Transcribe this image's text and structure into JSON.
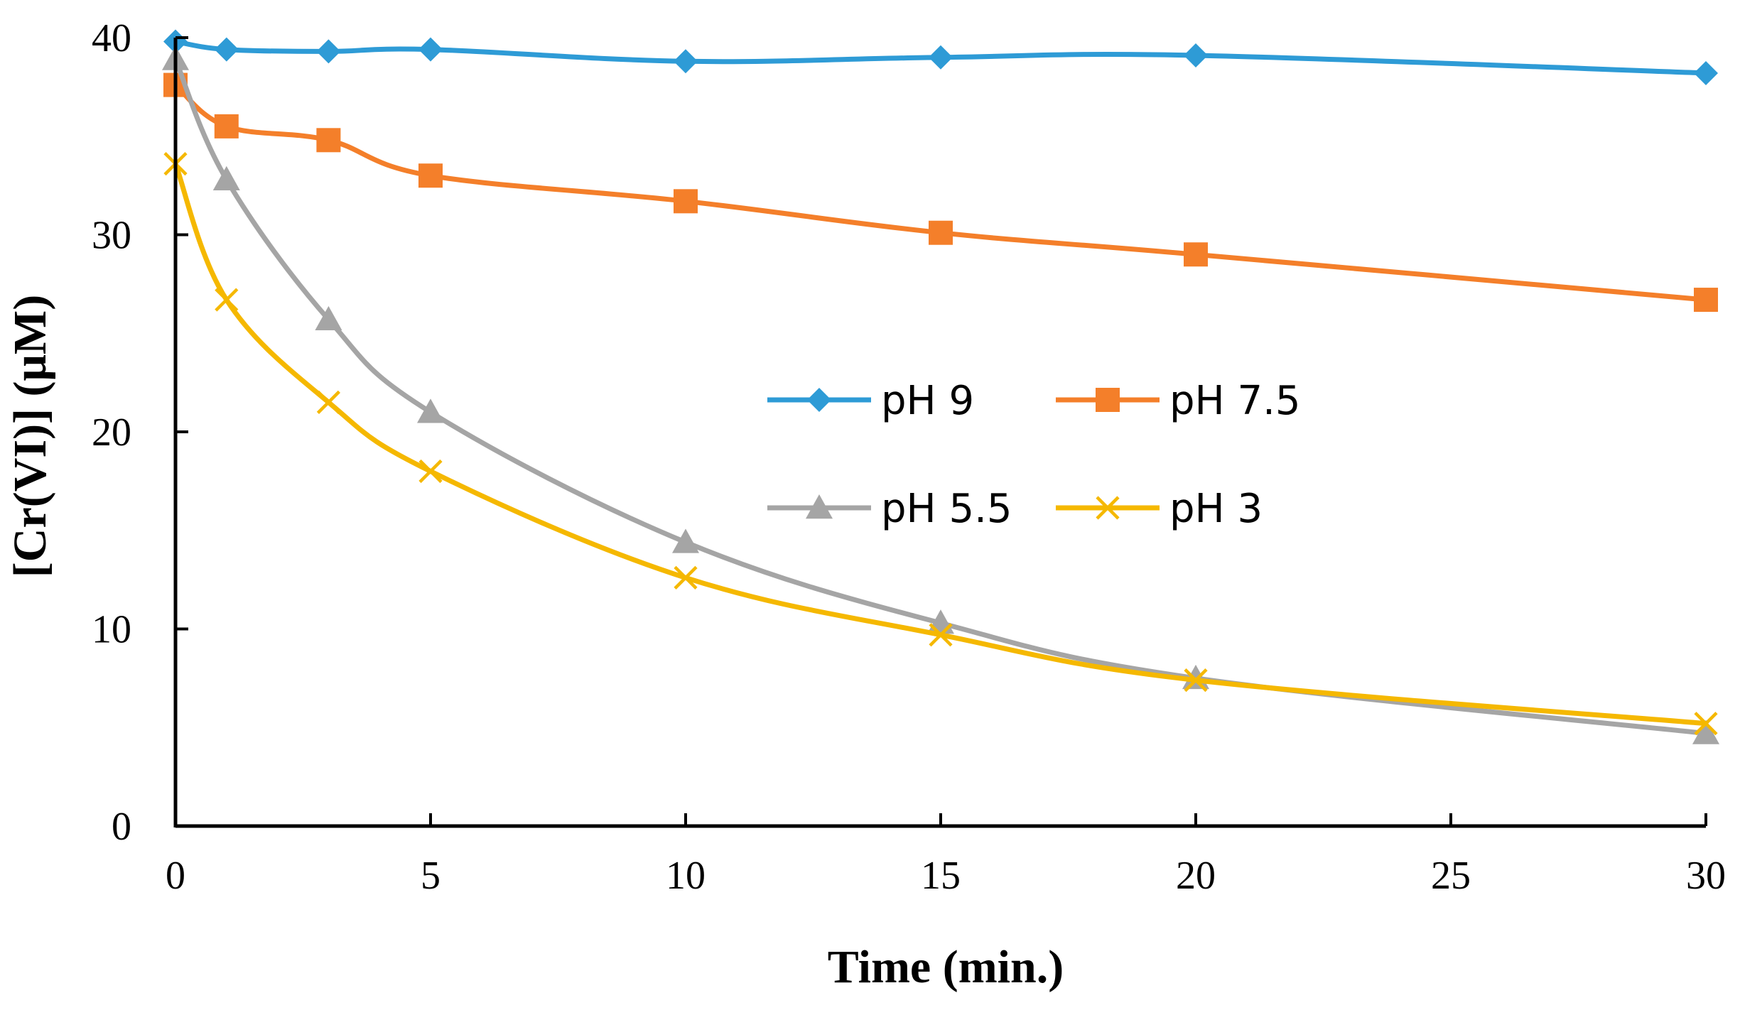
{
  "chart_data": {
    "type": "line",
    "title": "",
    "xlabel": "Time (min.)",
    "ylabel": "[Cr(VI)] (μM)",
    "xlim": [
      0,
      30
    ],
    "ylim": [
      0,
      40
    ],
    "xticks": [
      0,
      5,
      10,
      15,
      20,
      25,
      30
    ],
    "yticks": [
      0,
      10,
      20,
      30,
      40
    ],
    "xtick_labels": [
      "0",
      "5",
      "10",
      "15",
      "20",
      "25",
      "30"
    ],
    "ytick_labels": [
      "0",
      "10",
      "20",
      "30",
      "40"
    ],
    "grid": false,
    "legend_position": "center",
    "x": [
      0,
      1,
      3,
      5,
      10,
      15,
      20,
      30
    ],
    "series": [
      {
        "name": "pH 9",
        "marker": "diamond",
        "color": "#2E9BD6",
        "values": [
          39.8,
          39.4,
          39.3,
          39.4,
          38.8,
          39.0,
          39.1,
          38.2
        ]
      },
      {
        "name": "pH 7.5",
        "marker": "square",
        "color": "#F47F2A",
        "values": [
          37.6,
          35.5,
          34.8,
          33.0,
          31.7,
          30.1,
          29.0,
          26.7
        ]
      },
      {
        "name": "pH 5.5",
        "marker": "triangle",
        "color": "#A5A5A5",
        "values": [
          38.9,
          32.8,
          25.7,
          21.0,
          14.4,
          10.3,
          7.5,
          4.7
        ]
      },
      {
        "name": "pH 3",
        "marker": "x",
        "color": "#F5B800",
        "values": [
          33.6,
          26.7,
          21.5,
          18.0,
          12.6,
          9.7,
          7.4,
          5.2
        ]
      }
    ]
  }
}
